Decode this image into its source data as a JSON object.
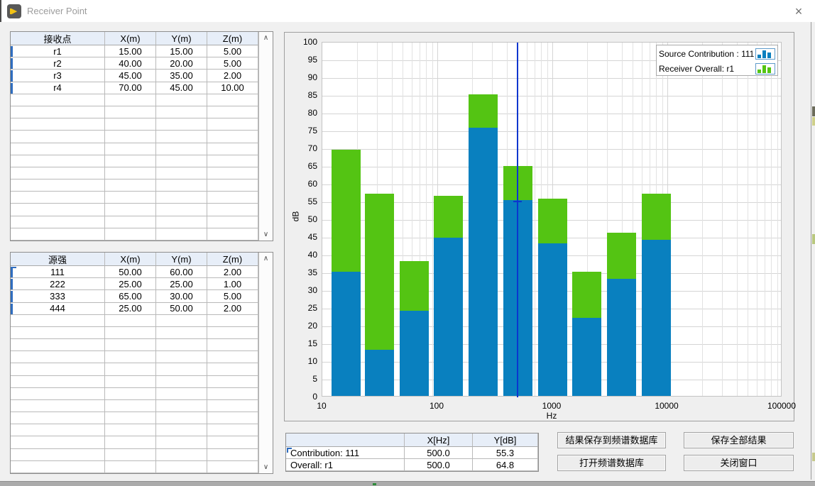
{
  "window": {
    "title": "Receiver Point",
    "close_glyph": "×",
    "icon_glyph": "▶"
  },
  "scrollbar": {
    "up_glyph": "∧",
    "down_glyph": "∨"
  },
  "receiver_table": {
    "headers": [
      "接收点",
      "X(m)",
      "Y(m)",
      "Z(m)"
    ],
    "rows": [
      [
        "r1",
        "15.00",
        "15.00",
        "5.00"
      ],
      [
        "r2",
        "40.00",
        "20.00",
        "5.00"
      ],
      [
        "r3",
        "45.00",
        "35.00",
        "2.00"
      ],
      [
        "r4",
        "70.00",
        "45.00",
        "10.00"
      ]
    ],
    "empty_row_count": 12
  },
  "source_table": {
    "headers": [
      "源强",
      "X(m)",
      "Y(m)",
      "Z(m)"
    ],
    "rows": [
      [
        "111",
        "50.00",
        "60.00",
        "2.00"
      ],
      [
        "222",
        "25.00",
        "25.00",
        "1.00"
      ],
      [
        "333",
        "65.00",
        "30.00",
        "5.00"
      ],
      [
        "444",
        "25.00",
        "50.00",
        "2.00"
      ]
    ],
    "empty_row_count": 13,
    "selected_cell": {
      "row": 0,
      "col": 1
    }
  },
  "chart_data": {
    "type": "bar",
    "title": "",
    "xlabel": "Hz",
    "ylabel": "dB",
    "x_scale": "log",
    "x_range": [
      10,
      100000
    ],
    "ylim": [
      0,
      100
    ],
    "y_tick_step": 5,
    "x_tick_labels": [
      "10",
      "100",
      "1000",
      "10000",
      "100000"
    ],
    "grid": true,
    "legend_position": "top-right",
    "categories_hz": [
      16,
      31.5,
      63,
      125,
      250,
      500,
      1000,
      2000,
      4000,
      8000
    ],
    "series": [
      {
        "name": "Receiver Overall: r1",
        "color": "#54c413",
        "values": [
          69.5,
          57.0,
          38.0,
          56.4,
          85.0,
          64.8,
          55.6,
          35.1,
          46.0,
          57.1
        ]
      },
      {
        "name": "Source Contribution : 111",
        "color": "#0980bf",
        "values": [
          35.0,
          13.0,
          24.0,
          44.6,
          75.6,
          55.3,
          43.0,
          22.1,
          33.1,
          44.0
        ]
      }
    ],
    "legend": [
      {
        "label": "Source Contribution : 111",
        "color": "#0980bf"
      },
      {
        "label": "Receiver Overall: r1",
        "color": "#54c413"
      }
    ],
    "cursor": {
      "x_hz": 500,
      "y_db": 55.3,
      "color": "#0b36cf"
    }
  },
  "cursor_table": {
    "headers": [
      "",
      "X[Hz]",
      "Y[dB]"
    ],
    "rows": [
      [
        "Contribution: 111",
        "500.0",
        "55.3"
      ],
      [
        "Overall: r1",
        "500.0",
        "64.8"
      ]
    ]
  },
  "buttons": {
    "save_to_db": "结果保存到频谱数据库",
    "save_all": "保存全部结果",
    "open_db": "打开频谱数据库",
    "close_window": "关闭窗口"
  }
}
